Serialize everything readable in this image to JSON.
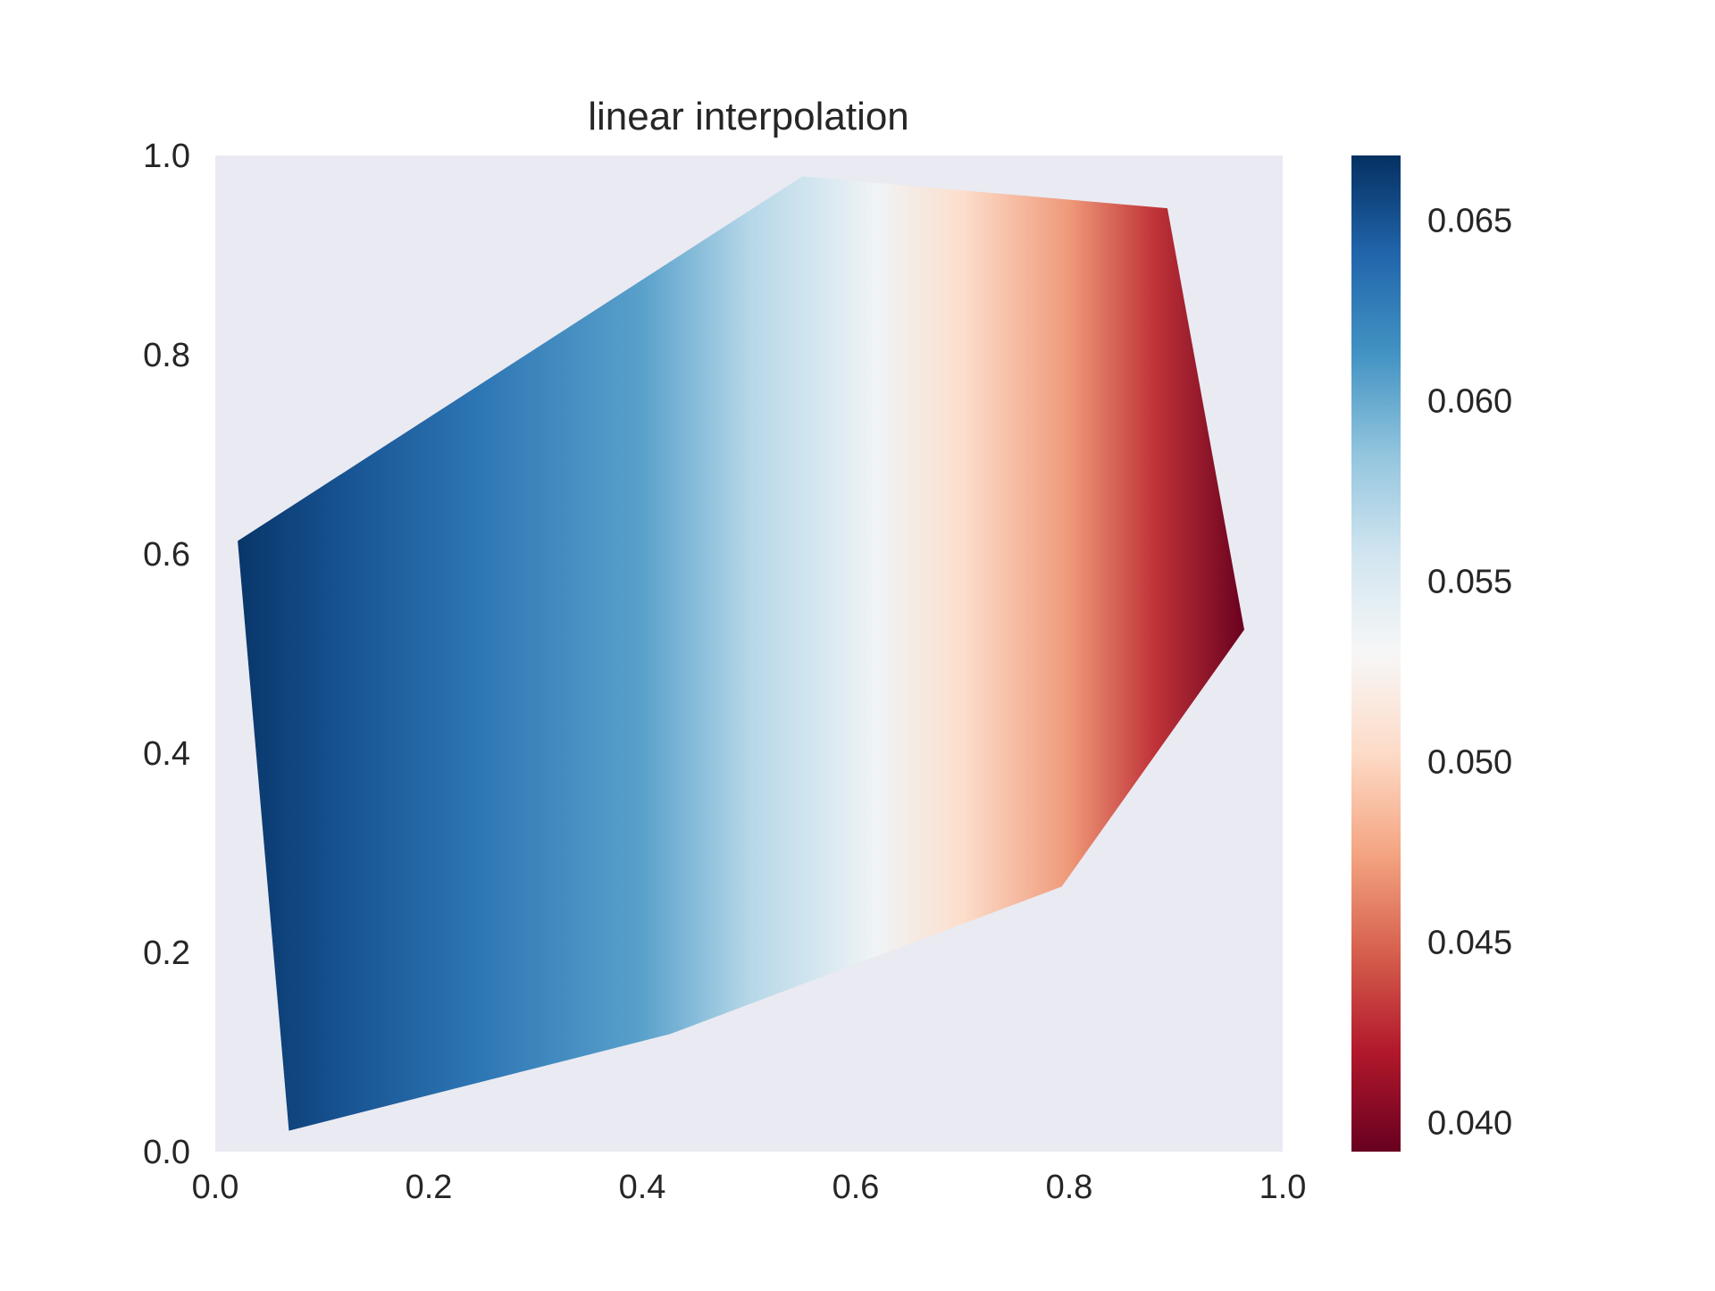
{
  "chart_data": {
    "type": "heatmap",
    "title": "linear interpolation",
    "xlabel": "",
    "ylabel": "",
    "xlim": [
      0.0,
      1.0
    ],
    "ylim": [
      0.0,
      1.0
    ],
    "xticks": [
      "0.0",
      "0.2",
      "0.4",
      "0.6",
      "0.8",
      "1.0"
    ],
    "yticks": [
      "0.0",
      "0.2",
      "0.4",
      "0.6",
      "0.8",
      "1.0"
    ],
    "grid": false,
    "colormap": "RdBu",
    "colorbar": {
      "range": [
        0.0392,
        0.0668
      ],
      "ticks": [
        "0.040",
        "0.045",
        "0.050",
        "0.055",
        "0.060",
        "0.065"
      ],
      "tick_values": [
        0.04,
        0.045,
        0.05,
        0.055,
        0.06,
        0.065
      ],
      "placement": "right"
    },
    "hull_vertices": [
      {
        "x": 0.069,
        "y": 0.021
      },
      {
        "x": 0.021,
        "y": 0.613
      },
      {
        "x": 0.55,
        "y": 0.979
      },
      {
        "x": 0.892,
        "y": 0.947
      },
      {
        "x": 0.964,
        "y": 0.524
      },
      {
        "x": 0.793,
        "y": 0.266
      },
      {
        "x": 0.426,
        "y": 0.118
      }
    ],
    "value_profile_along_x": [
      {
        "x": 0.02,
        "value": 0.0665
      },
      {
        "x": 0.12,
        "value": 0.065
      },
      {
        "x": 0.25,
        "value": 0.063
      },
      {
        "x": 0.4,
        "value": 0.0605
      },
      {
        "x": 0.5,
        "value": 0.057
      },
      {
        "x": 0.62,
        "value": 0.0535
      },
      {
        "x": 0.7,
        "value": 0.0505
      },
      {
        "x": 0.8,
        "value": 0.047
      },
      {
        "x": 0.88,
        "value": 0.043
      },
      {
        "x": 0.965,
        "value": 0.0393
      }
    ]
  },
  "colors": {
    "axes_bg": "#eaeaf2",
    "text": "#262626"
  }
}
